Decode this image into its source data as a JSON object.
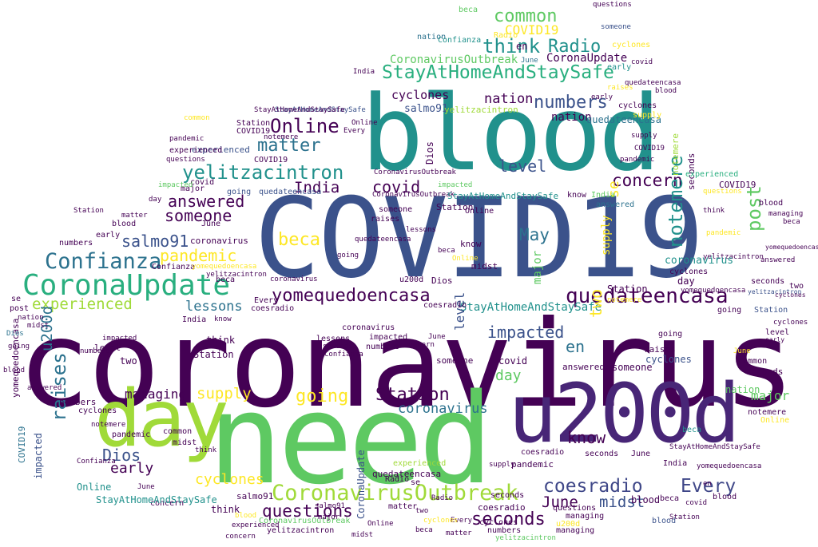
{
  "palette": {
    "c1": "#440154",
    "c2": "#3b528b",
    "c3": "#21918c",
    "c4": "#5ec962",
    "c5": "#fde725",
    "c6": "#2c728e",
    "c7": "#3f4788",
    "c8": "#29af7f",
    "c9": "#a0da39",
    "c10": "#482677"
  },
  "words": [
    {
      "text": "coronavirus",
      "color": "c10"
    },
    {
      "text": "COVID19",
      "color": "c2"
    },
    {
      "text": "blood",
      "color": "c3"
    },
    {
      "text": "need",
      "color": "c4"
    },
    {
      "text": "day",
      "color": "c9"
    },
    {
      "text": "u200d",
      "color": "c10"
    },
    {
      "text": "CoronaUpdate",
      "color": "c8"
    },
    {
      "text": "StayAtHomeAndStaySafe",
      "color": "c8"
    },
    {
      "text": "yelitzacintron",
      "color": "c3"
    },
    {
      "text": "CoronavirusOutbreak",
      "color": "c9"
    },
    {
      "text": "quedateencasa",
      "color": "c1"
    },
    {
      "text": "yomequedoencasa",
      "color": "c1"
    },
    {
      "text": "Confianza",
      "color": "c6"
    },
    {
      "text": "coesradio",
      "color": "c7"
    },
    {
      "text": "Every",
      "color": "c7"
    },
    {
      "text": "Online",
      "color": "c1"
    },
    {
      "text": "matter",
      "color": "c6"
    },
    {
      "text": "numbers",
      "color": "c2"
    },
    {
      "text": "nation",
      "color": "c1"
    },
    {
      "text": "think",
      "color": "c3"
    },
    {
      "text": "Radio",
      "color": "c3"
    },
    {
      "text": "common",
      "color": "c4"
    },
    {
      "text": "concern",
      "color": "c1"
    },
    {
      "text": "answered",
      "color": "c1"
    },
    {
      "text": "someone",
      "color": "c1"
    },
    {
      "text": "salmo91",
      "color": "c2"
    },
    {
      "text": "beca",
      "color": "c5"
    },
    {
      "text": "pandemic",
      "color": "c5"
    },
    {
      "text": "experienced",
      "color": "c9"
    },
    {
      "text": "impacted",
      "color": "c2"
    },
    {
      "text": "level",
      "color": "c2"
    },
    {
      "text": "covid",
      "color": "c1"
    },
    {
      "text": "India",
      "color": "c1"
    },
    {
      "text": "post",
      "color": "c4"
    },
    {
      "text": "notemere",
      "color": "c3"
    },
    {
      "text": "May",
      "color": "c6"
    },
    {
      "text": "Station",
      "color": "c1"
    },
    {
      "text": "going",
      "color": "c5"
    },
    {
      "text": "supply",
      "color": "c5"
    },
    {
      "text": "managing",
      "color": "c1"
    },
    {
      "text": "raises",
      "color": "c6"
    },
    {
      "text": "lessons",
      "color": "c6"
    },
    {
      "text": "Dios",
      "color": "c2"
    },
    {
      "text": "early",
      "color": "c1"
    },
    {
      "text": "questions",
      "color": "c1"
    },
    {
      "text": "cyclones",
      "color": "c5"
    },
    {
      "text": "seconds",
      "color": "c1"
    },
    {
      "text": "June",
      "color": "c1"
    },
    {
      "text": "midst",
      "color": "c2"
    },
    {
      "text": "know",
      "color": "c1"
    },
    {
      "text": "major",
      "color": "c4"
    },
    {
      "text": "two",
      "color": "c5"
    },
    {
      "text": "en",
      "color": "c6"
    },
    {
      "text": "se",
      "color": "c5"
    }
  ]
}
